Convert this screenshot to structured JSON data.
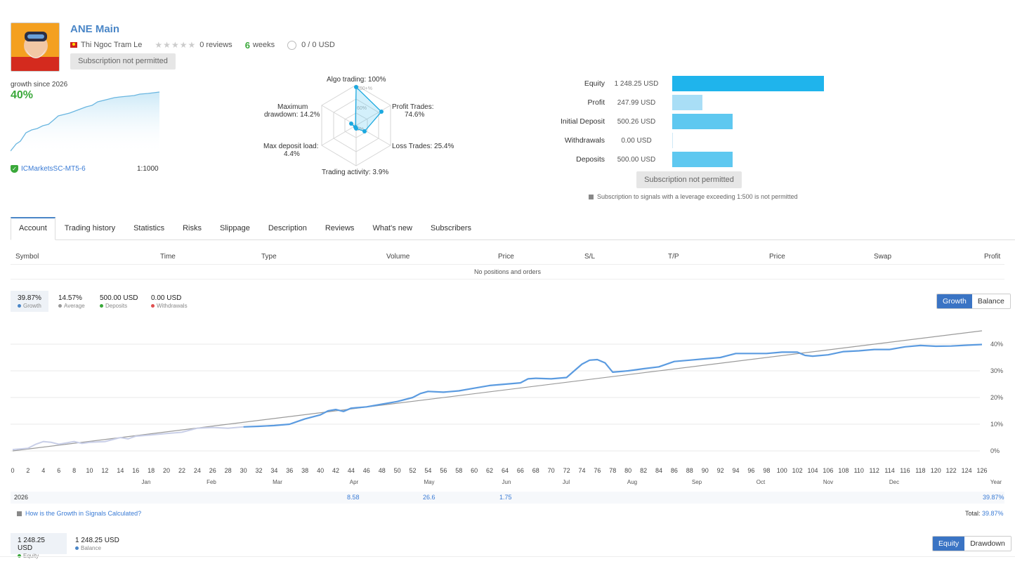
{
  "header": {
    "title": "ANE Main",
    "author": "Thi Ngoc Tram Le",
    "stars": "★★★★★",
    "reviews": "0 reviews",
    "weeks_num": "6",
    "weeks_label": "weeks",
    "price": "0 / 0 USD",
    "subscribe_label": "Subscription not permitted"
  },
  "growth": {
    "since": "growth since 2026",
    "pct": "40%",
    "broker": "ICMarketsSC-MT5-6",
    "leverage": "1:1000"
  },
  "radar": {
    "algo": "Algo trading: 100%",
    "profit": "Profit Trades:",
    "profit_v": "74.6%",
    "loss": "Loss Trades: 25.4%",
    "activity": "Trading activity: 3.9%",
    "load": "Max deposit load:",
    "load_v": "4.4%",
    "dd": "Maximum",
    "dd_v": "drawdown: 14.2%",
    "g100": "100+%",
    "g60": "60%",
    "g0": "0%"
  },
  "bars": [
    {
      "label": "Equity",
      "value": "1 248.25 USD",
      "fraction": 1.0,
      "color": "#1fb4ec"
    },
    {
      "label": "Profit",
      "value": "247.99 USD",
      "fraction": 0.199,
      "color": "#a9def6"
    },
    {
      "label": "Initial Deposit",
      "value": "500.26 USD",
      "fraction": 0.4,
      "color": "#5ec8f0"
    },
    {
      "label": "Withdrawals",
      "value": "0.00 USD",
      "fraction": 0.0,
      "color": "#5ec8f0"
    },
    {
      "label": "Deposits",
      "value": "500.00 USD",
      "fraction": 0.4,
      "color": "#5ec8f0"
    }
  ],
  "note": "Subscription to signals with a leverage exceeding 1:500 is not permitted",
  "tabs": [
    "Account",
    "Trading history",
    "Statistics",
    "Risks",
    "Slippage",
    "Description",
    "Reviews",
    "What's new",
    "Subscribers"
  ],
  "table": {
    "headers": [
      "Symbol",
      "Time",
      "Type",
      "Volume",
      "Price",
      "S/L",
      "T/P",
      "Price",
      "Swap",
      "Profit"
    ],
    "empty": "No positions and orders"
  },
  "stats": [
    {
      "value": "39.87%",
      "label": "Growth",
      "color": "#4a86c7"
    },
    {
      "value": "14.57%",
      "label": "Average",
      "color": "#999999"
    },
    {
      "value": "500.00 USD",
      "label": "Deposits",
      "color": "#3aa83a"
    },
    {
      "value": "0.00 USD",
      "label": "Withdrawals",
      "color": "#e05050"
    }
  ],
  "growth_toggle": [
    "Growth",
    "Balance"
  ],
  "chart_data": {
    "type": "line",
    "x_ticks": [
      0,
      2,
      4,
      6,
      8,
      10,
      12,
      14,
      16,
      18,
      20,
      22,
      24,
      26,
      28,
      30,
      32,
      34,
      36,
      38,
      40,
      42,
      44,
      46,
      48,
      50,
      52,
      54,
      56,
      58,
      60,
      62,
      64,
      66,
      68,
      70,
      72,
      74,
      76,
      78,
      80,
      82,
      84,
      86,
      88,
      90,
      92,
      94,
      96,
      98,
      100,
      102,
      104,
      106,
      108,
      110,
      112,
      114,
      116,
      118,
      120,
      122,
      124,
      126
    ],
    "months": [
      "Jan",
      "Feb",
      "Mar",
      "Apr",
      "May",
      "Jun",
      "Jul",
      "Aug",
      "Sep",
      "Oct",
      "Nov",
      "Dec",
      "Year"
    ],
    "y_ticks": [
      "40%",
      "30%",
      "20%",
      "10%",
      "0%"
    ],
    "ylim": [
      0,
      45
    ],
    "series": [
      {
        "values": [
          [
            0,
            0.5
          ],
          [
            2,
            1
          ],
          [
            3,
            2.5
          ],
          [
            4,
            3.5
          ],
          [
            5,
            3.2
          ],
          [
            6,
            2.5
          ],
          [
            7,
            3
          ],
          [
            8,
            3.5
          ],
          [
            9,
            2.8
          ],
          [
            10,
            3.2
          ],
          [
            12,
            3.5
          ],
          [
            14,
            5
          ],
          [
            15,
            4.5
          ],
          [
            16,
            5.5
          ],
          [
            18,
            6
          ],
          [
            20,
            6.5
          ],
          [
            22,
            7
          ],
          [
            24,
            8.5
          ],
          [
            26,
            8.8
          ],
          [
            28,
            8.5
          ],
          [
            30,
            9
          ],
          [
            32,
            9.2
          ],
          [
            34,
            9.5
          ],
          [
            36,
            10
          ],
          [
            37,
            11
          ],
          [
            38,
            12
          ],
          [
            40,
            13.5
          ],
          [
            41,
            15
          ],
          [
            42,
            15.5
          ],
          [
            43,
            14.8
          ],
          [
            44,
            16
          ],
          [
            46,
            16.5
          ],
          [
            48,
            17.5
          ],
          [
            50,
            18.5
          ],
          [
            52,
            20
          ],
          [
            53,
            21.5
          ],
          [
            54,
            22.3
          ],
          [
            56,
            22
          ],
          [
            58,
            22.5
          ],
          [
            60,
            23.5
          ],
          [
            62,
            24.5
          ],
          [
            64,
            25
          ],
          [
            66,
            25.5
          ],
          [
            67,
            27
          ],
          [
            68,
            27.2
          ],
          [
            70,
            27
          ],
          [
            72,
            27.5
          ],
          [
            73,
            30
          ],
          [
            74,
            32.5
          ],
          [
            75,
            34
          ],
          [
            76,
            34.2
          ],
          [
            77,
            33
          ],
          [
            78,
            29.5
          ],
          [
            80,
            30
          ],
          [
            82,
            30.8
          ],
          [
            84,
            31.5
          ],
          [
            86,
            33.5
          ],
          [
            88,
            34
          ],
          [
            90,
            34.5
          ],
          [
            92,
            35
          ],
          [
            94,
            36.5
          ],
          [
            96,
            36.5
          ],
          [
            98,
            36.5
          ],
          [
            100,
            37
          ],
          [
            102,
            37
          ],
          [
            103,
            35.8
          ],
          [
            104,
            35.5
          ],
          [
            106,
            36
          ],
          [
            108,
            37.2
          ],
          [
            110,
            37.5
          ],
          [
            112,
            38
          ],
          [
            114,
            38
          ],
          [
            116,
            39
          ],
          [
            118,
            39.5
          ],
          [
            120,
            39.2
          ],
          [
            122,
            39.3
          ],
          [
            124,
            39.6
          ],
          [
            126,
            39.87
          ]
        ]
      },
      {
        "values": [
          [
            0,
            0
          ],
          [
            126,
            45
          ]
        ]
      }
    ],
    "year_row": {
      "year": "2026",
      "apr": "8.58",
      "may": "26.6",
      "jun": "1.75",
      "total": "39.87%"
    }
  },
  "calc_link": "How is the Growth in Signals Calculated?",
  "total_label": "Total:",
  "total_value": "39.87%",
  "bottom": {
    "equity": "1 248.25 USD",
    "equity_label": "Equity",
    "balance": "1 248.25 USD",
    "balance_label": "Balance",
    "toggle": [
      "Equity",
      "Drawdown"
    ]
  }
}
